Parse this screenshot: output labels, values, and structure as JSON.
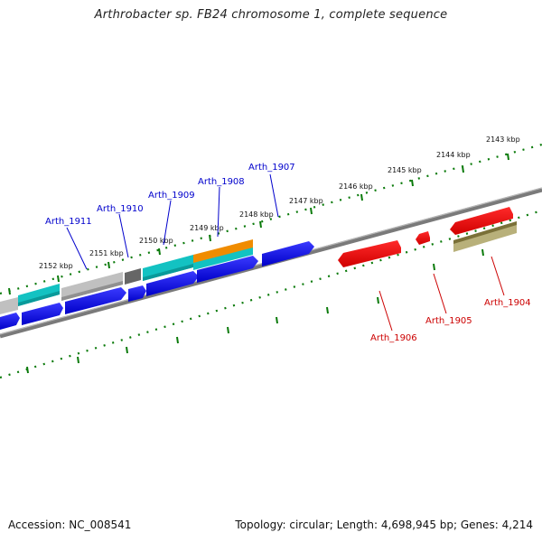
{
  "title": "Arthrobacter sp. FB24 chromosome 1, complete sequence",
  "footer": {
    "accession": "Accession: NC_008541",
    "summary": "Topology: circular; Length: 4,698,945 bp; Genes: 4,214"
  },
  "colors": {
    "forward_gene": "#0000ee",
    "reverse_gene": "#ee0000",
    "forward_label": "#0000cc",
    "reverse_label": "#cc0000",
    "scale_ticks": "#0a7a0a",
    "backbone": "#777777",
    "cyan_track": "#13c2c2",
    "gray_track": "#b8b8b8",
    "dark_gray_track": "#666666",
    "orange_track": "#f08c00",
    "olive_track": "#b8b07a"
  },
  "scale_labels": [
    "2143 kbp",
    "2144 kbp",
    "2145 kbp",
    "2146 kbp",
    "2147 kbp",
    "2148 kbp",
    "2149 kbp",
    "2150 kbp",
    "2151 kbp",
    "2152 kbp"
  ],
  "forward_genes": [
    "Arth_1907",
    "Arth_1908",
    "Arth_1909",
    "Arth_1910",
    "Arth_1911"
  ],
  "reverse_genes": [
    "Arth_1904",
    "Arth_1905",
    "Arth_1906"
  ]
}
